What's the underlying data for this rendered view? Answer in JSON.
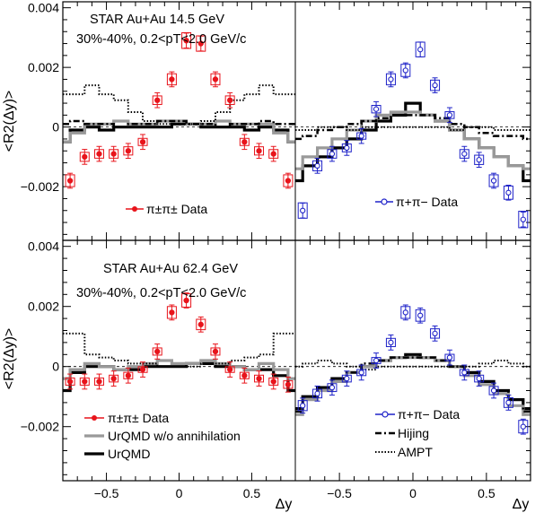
{
  "figure": {
    "xlabel": "Δy",
    "ylabel": "<R2(Δy)>",
    "x_ticks": [
      "−0.5",
      "0",
      "0.5"
    ],
    "y_ticks": [
      "−0.002",
      "0",
      "0.002",
      "0.004"
    ],
    "colors": {
      "same": "#e8141b",
      "opp": "#1e22c8",
      "urqmd": "#000000",
      "urqmd_noann": "#999999"
    },
    "legend_top_left": "π±π± Data",
    "legend_top_right": "π+π− Data",
    "legend_bottom_left": [
      "π±π± Data",
      "UrQMD w/o annihilation",
      "UrQMD"
    ],
    "legend_bottom_right": [
      "π+π− Data",
      "Hijing",
      "AMPT"
    ]
  },
  "chart_data": [
    {
      "type": "scatter",
      "panel": "top-left",
      "title": "STAR Au+Au 14.5 GeV",
      "subtitle": "30%-40%, 0.2<pT<2.0 GeV/c",
      "xlim": [
        -0.8,
        0.8
      ],
      "ylim": [
        -0.0038,
        0.0042
      ],
      "data": {
        "name": "π±π± Data",
        "x": [
          -0.75,
          -0.65,
          -0.55,
          -0.45,
          -0.35,
          -0.25,
          -0.15,
          -0.05,
          0.05,
          0.15,
          0.25,
          0.35,
          0.45,
          0.55,
          0.65,
          0.75
        ],
        "y": [
          -0.0018,
          -0.001,
          -0.0009,
          -0.0009,
          -0.0008,
          -0.0005,
          0.0009,
          0.0016,
          0.0029,
          0.0028,
          0.0016,
          0.0009,
          -0.0005,
          -0.0008,
          -0.0009,
          -0.0018
        ]
      },
      "models": [
        {
          "name": "UrQMD",
          "x": [
            -0.8,
            -0.7,
            -0.6,
            -0.5,
            -0.4,
            -0.3,
            -0.2,
            -0.1,
            0,
            0.1,
            0.2,
            0.3,
            0.4,
            0.5,
            0.6,
            0.7,
            0.8
          ],
          "y": [
            -0.0005,
            -0.0001,
            0,
            -0.0001,
            0,
            0,
            0,
            0,
            0.0001,
            0.0001,
            0,
            0,
            0,
            -0.0001,
            0,
            -0.0001,
            -0.0005
          ]
        },
        {
          "name": "UrQMD w/o annihilation",
          "x": [
            -0.8,
            -0.7,
            -0.6,
            -0.5,
            -0.4,
            -0.3,
            -0.2,
            -0.1,
            0,
            0.1,
            0.2,
            0.3,
            0.4,
            0.5,
            0.6,
            0.7,
            0.8
          ],
          "y": [
            -0.0005,
            -0.0002,
            0.0001,
            0.0001,
            0.0002,
            0.0001,
            0.0001,
            0.0002,
            0.0002,
            0.0001,
            0.0001,
            0.0002,
            0.0001,
            0.0001,
            0.0001,
            -0.0002,
            -0.0005
          ]
        },
        {
          "name": "Hijing",
          "x": [
            -0.8,
            -0.7,
            -0.6,
            -0.5,
            -0.4,
            -0.3,
            -0.2,
            -0.1,
            0,
            0.1,
            0.2,
            0.3,
            0.4,
            0.5,
            0.6,
            0.7,
            0.8
          ],
          "y": [
            0.0001,
            0.0002,
            0.0001,
            0.0001,
            0,
            0.0001,
            0.0001,
            0.0002,
            0.0002,
            0.0001,
            0.0001,
            0,
            0.0001,
            0.0001,
            0.0002,
            0.0001,
            0.0001
          ]
        },
        {
          "name": "AMPT",
          "x": [
            -0.8,
            -0.7,
            -0.6,
            -0.5,
            -0.4,
            -0.3,
            -0.2,
            -0.1,
            0,
            0.1,
            0.2,
            0.3,
            0.4,
            0.5,
            0.6,
            0.7,
            0.8
          ],
          "y": [
            0.0011,
            0.0011,
            0.0014,
            0.0011,
            0.0009,
            0.0005,
            0.0002,
            0.0001,
            0.0001,
            0.0001,
            0.0002,
            0.0005,
            0.0009,
            0.0011,
            0.0014,
            0.0011,
            0.0011
          ]
        }
      ]
    },
    {
      "type": "scatter",
      "panel": "top-right",
      "xlim": [
        -0.8,
        0.8
      ],
      "ylim": [
        -0.0038,
        0.0042
      ],
      "data": {
        "name": "π+π− Data",
        "x": [
          -0.75,
          -0.65,
          -0.55,
          -0.45,
          -0.35,
          -0.25,
          -0.15,
          -0.05,
          0.05,
          0.15,
          0.25,
          0.35,
          0.45,
          0.55,
          0.65,
          0.75
        ],
        "y": [
          -0.0028,
          -0.0013,
          -0.0009,
          -0.0007,
          -0.0003,
          0.0006,
          0.0016,
          0.0019,
          0.0026,
          0.0014,
          0.0004,
          -0.0009,
          -0.0011,
          -0.0018,
          -0.0022,
          -0.0031
        ]
      },
      "models": [
        {
          "name": "UrQMD",
          "x": [
            -0.8,
            -0.7,
            -0.6,
            -0.5,
            -0.4,
            -0.3,
            -0.2,
            -0.1,
            0,
            0.1,
            0.2,
            0.3,
            0.4,
            0.5,
            0.6,
            0.7,
            0.8
          ],
          "y": [
            -0.0018,
            -0.0013,
            -0.001,
            -0.0007,
            -0.0004,
            -0.0001,
            0.0002,
            0.0004,
            0.0008,
            0.0004,
            0.0002,
            -0.0001,
            -0.0004,
            -0.0007,
            -0.001,
            -0.0013,
            -0.0018
          ]
        },
        {
          "name": "UrQMD w/o annihilation",
          "x": [
            -0.8,
            -0.7,
            -0.6,
            -0.5,
            -0.4,
            -0.3,
            -0.2,
            -0.1,
            0,
            0.1,
            0.2,
            0.3,
            0.4,
            0.5,
            0.6,
            0.7,
            0.8
          ],
          "y": [
            -0.0014,
            -0.001,
            -0.0007,
            -0.0004,
            -0.0001,
            0.0002,
            0.0004,
            0.0005,
            0.0005,
            0.0004,
            0.0002,
            -0.0001,
            -0.0004,
            -0.0007,
            -0.001,
            -0.0013,
            -0.0014
          ]
        },
        {
          "name": "Hijing",
          "x": [
            -0.8,
            -0.7,
            -0.6,
            -0.5,
            -0.4,
            -0.3,
            -0.2,
            -0.1,
            0,
            0.1,
            0.2,
            0.3,
            0.4,
            0.5,
            0.6,
            0.7,
            0.8
          ],
          "y": [
            -0.0004,
            -0.0003,
            -0.0001,
            0,
            0.0001,
            0.0002,
            0.0003,
            0.0004,
            0.0004,
            0.0004,
            0.0003,
            0.0001,
            0,
            -0.0002,
            -0.0003,
            -0.0003,
            -0.0004
          ]
        },
        {
          "name": "AMPT",
          "x": [
            -0.8,
            -0.7,
            -0.6,
            -0.5,
            -0.4,
            -0.3,
            -0.2,
            -0.1,
            0,
            0.1,
            0.2,
            0.3,
            0.4,
            0.5,
            0.6,
            0.7,
            0.8
          ],
          "y": [
            -0.0001,
            -0.0001,
            0,
            0,
            -0.0001,
            0,
            0,
            0,
            0,
            0,
            0,
            -0.0001,
            0,
            0,
            -0.0001,
            -0.0001,
            -0.0001
          ]
        }
      ]
    },
    {
      "type": "scatter",
      "panel": "bottom-left",
      "title": "STAR Au+Au 62.4 GeV",
      "subtitle": "30%-40%, 0.2<pT<2.0 GeV/c",
      "xlim": [
        -0.8,
        0.8
      ],
      "ylim": [
        -0.0038,
        0.0042
      ],
      "data": {
        "name": "π±π± Data",
        "x": [
          -0.75,
          -0.65,
          -0.55,
          -0.45,
          -0.35,
          -0.25,
          -0.15,
          -0.05,
          0.05,
          0.15,
          0.25,
          0.35,
          0.45,
          0.55,
          0.65,
          0.75
        ],
        "y": [
          -0.0005,
          -0.0005,
          -0.0005,
          -0.0004,
          -0.0003,
          -0.0001,
          0.0005,
          0.0018,
          0.0022,
          0.0014,
          0.0005,
          -0.0001,
          -0.0003,
          -0.0004,
          -0.0005,
          -0.0006
        ]
      },
      "models": [
        {
          "name": "UrQMD",
          "x": [
            -0.8,
            -0.7,
            -0.6,
            -0.5,
            -0.4,
            -0.3,
            -0.2,
            -0.1,
            0,
            0.1,
            0.2,
            0.3,
            0.4,
            0.5,
            0.6,
            0.7,
            0.8
          ],
          "y": [
            -0.0008,
            -0.0002,
            0,
            0,
            -0.0001,
            -0.0001,
            0,
            0,
            0,
            0.0001,
            0.0001,
            0,
            0,
            -0.0001,
            -0.0001,
            -0.0003,
            -0.0008
          ]
        },
        {
          "name": "UrQMD w/o annihilation",
          "x": [
            -0.8,
            -0.7,
            -0.6,
            -0.5,
            -0.4,
            -0.3,
            -0.2,
            -0.1,
            0,
            0.1,
            0.2,
            0.3,
            0.4,
            0.5,
            0.6,
            0.7,
            0.8
          ],
          "y": [
            -0.0004,
            -0.0001,
            0.0001,
            0,
            -0.0001,
            0,
            0.0001,
            0.0002,
            0.0001,
            0.0001,
            0.0002,
            0.0001,
            0,
            -0.0001,
            0.0001,
            -0.0001,
            -0.0004
          ]
        },
        {
          "name": "AMPT",
          "x": [
            -0.8,
            -0.7,
            -0.6,
            -0.5,
            -0.4,
            -0.3,
            -0.2,
            -0.1,
            0,
            0.1,
            0.2,
            0.3,
            0.4,
            0.5,
            0.6,
            0.7,
            0.8
          ],
          "y": [
            0.0011,
            0.0011,
            0.0004,
            0.0003,
            0.0002,
            0.0001,
            0.0001,
            0,
            0,
            0,
            0.0001,
            0.0001,
            0.0002,
            0.0003,
            0.0004,
            0.0011,
            0.0011
          ]
        }
      ]
    },
    {
      "type": "scatter",
      "panel": "bottom-right",
      "xlim": [
        -0.8,
        0.8
      ],
      "ylim": [
        -0.0038,
        0.0042
      ],
      "data": {
        "name": "π+π− Data",
        "x": [
          -0.75,
          -0.65,
          -0.55,
          -0.45,
          -0.35,
          -0.25,
          -0.15,
          -0.05,
          0.05,
          0.15,
          0.25,
          0.35,
          0.45,
          0.55,
          0.65,
          0.75
        ],
        "y": [
          -0.0013,
          -0.0009,
          -0.0007,
          -0.0004,
          -0.0002,
          0.0002,
          0.0008,
          0.0018,
          0.0017,
          0.0011,
          0.0003,
          -0.0002,
          -0.0004,
          -0.0008,
          -0.0012,
          -0.002
        ]
      },
      "models": [
        {
          "name": "UrQMD",
          "x": [
            -0.8,
            -0.7,
            -0.6,
            -0.5,
            -0.4,
            -0.3,
            -0.2,
            -0.1,
            0,
            0.1,
            0.2,
            0.3,
            0.4,
            0.5,
            0.6,
            0.7,
            0.8
          ],
          "y": [
            -0.0014,
            -0.001,
            -0.0007,
            -0.0004,
            -0.0002,
            0,
            0.0002,
            0.0003,
            0.0004,
            0.0003,
            0.0002,
            0,
            -0.0002,
            -0.0005,
            -0.0008,
            -0.0011,
            -0.0014
          ]
        },
        {
          "name": "UrQMD w/o annihilation",
          "x": [
            -0.8,
            -0.7,
            -0.6,
            -0.5,
            -0.4,
            -0.3,
            -0.2,
            -0.1,
            0,
            0.1,
            0.2,
            0.3,
            0.4,
            0.5,
            0.6,
            0.7,
            0.8
          ],
          "y": [
            -0.0016,
            -0.0011,
            -0.0008,
            -0.0005,
            -0.0002,
            0,
            0.0002,
            0.0003,
            0.0003,
            0.0003,
            0.0002,
            0,
            -0.0003,
            -0.0006,
            -0.0009,
            -0.0013,
            -0.0016
          ]
        },
        {
          "name": "Hijing",
          "x": [
            -0.8,
            -0.7,
            -0.6,
            -0.5,
            -0.4,
            -0.3,
            -0.2,
            -0.1,
            0,
            0.1,
            0.2,
            0.3,
            0.4,
            0.5,
            0.6,
            0.7,
            0.8
          ],
          "y": [
            -0.0015,
            -0.001,
            -0.0007,
            -0.0004,
            -0.0002,
            0.0001,
            0.0002,
            0.0003,
            0.0003,
            0.0003,
            0.0002,
            0,
            -0.0002,
            -0.0005,
            -0.0008,
            -0.0011,
            -0.0015
          ]
        },
        {
          "name": "AMPT",
          "x": [
            -0.8,
            -0.7,
            -0.6,
            -0.5,
            -0.4,
            -0.3,
            -0.2,
            -0.1,
            0,
            0.1,
            0.2,
            0.3,
            0.4,
            0.5,
            0.6,
            0.7,
            0.8
          ],
          "y": [
            0,
            0.0001,
            0.0002,
            0.0001,
            0,
            -0.0001,
            0,
            0,
            0,
            0,
            0,
            0,
            0,
            0.0001,
            0.0002,
            0.0001,
            0
          ]
        }
      ]
    }
  ]
}
